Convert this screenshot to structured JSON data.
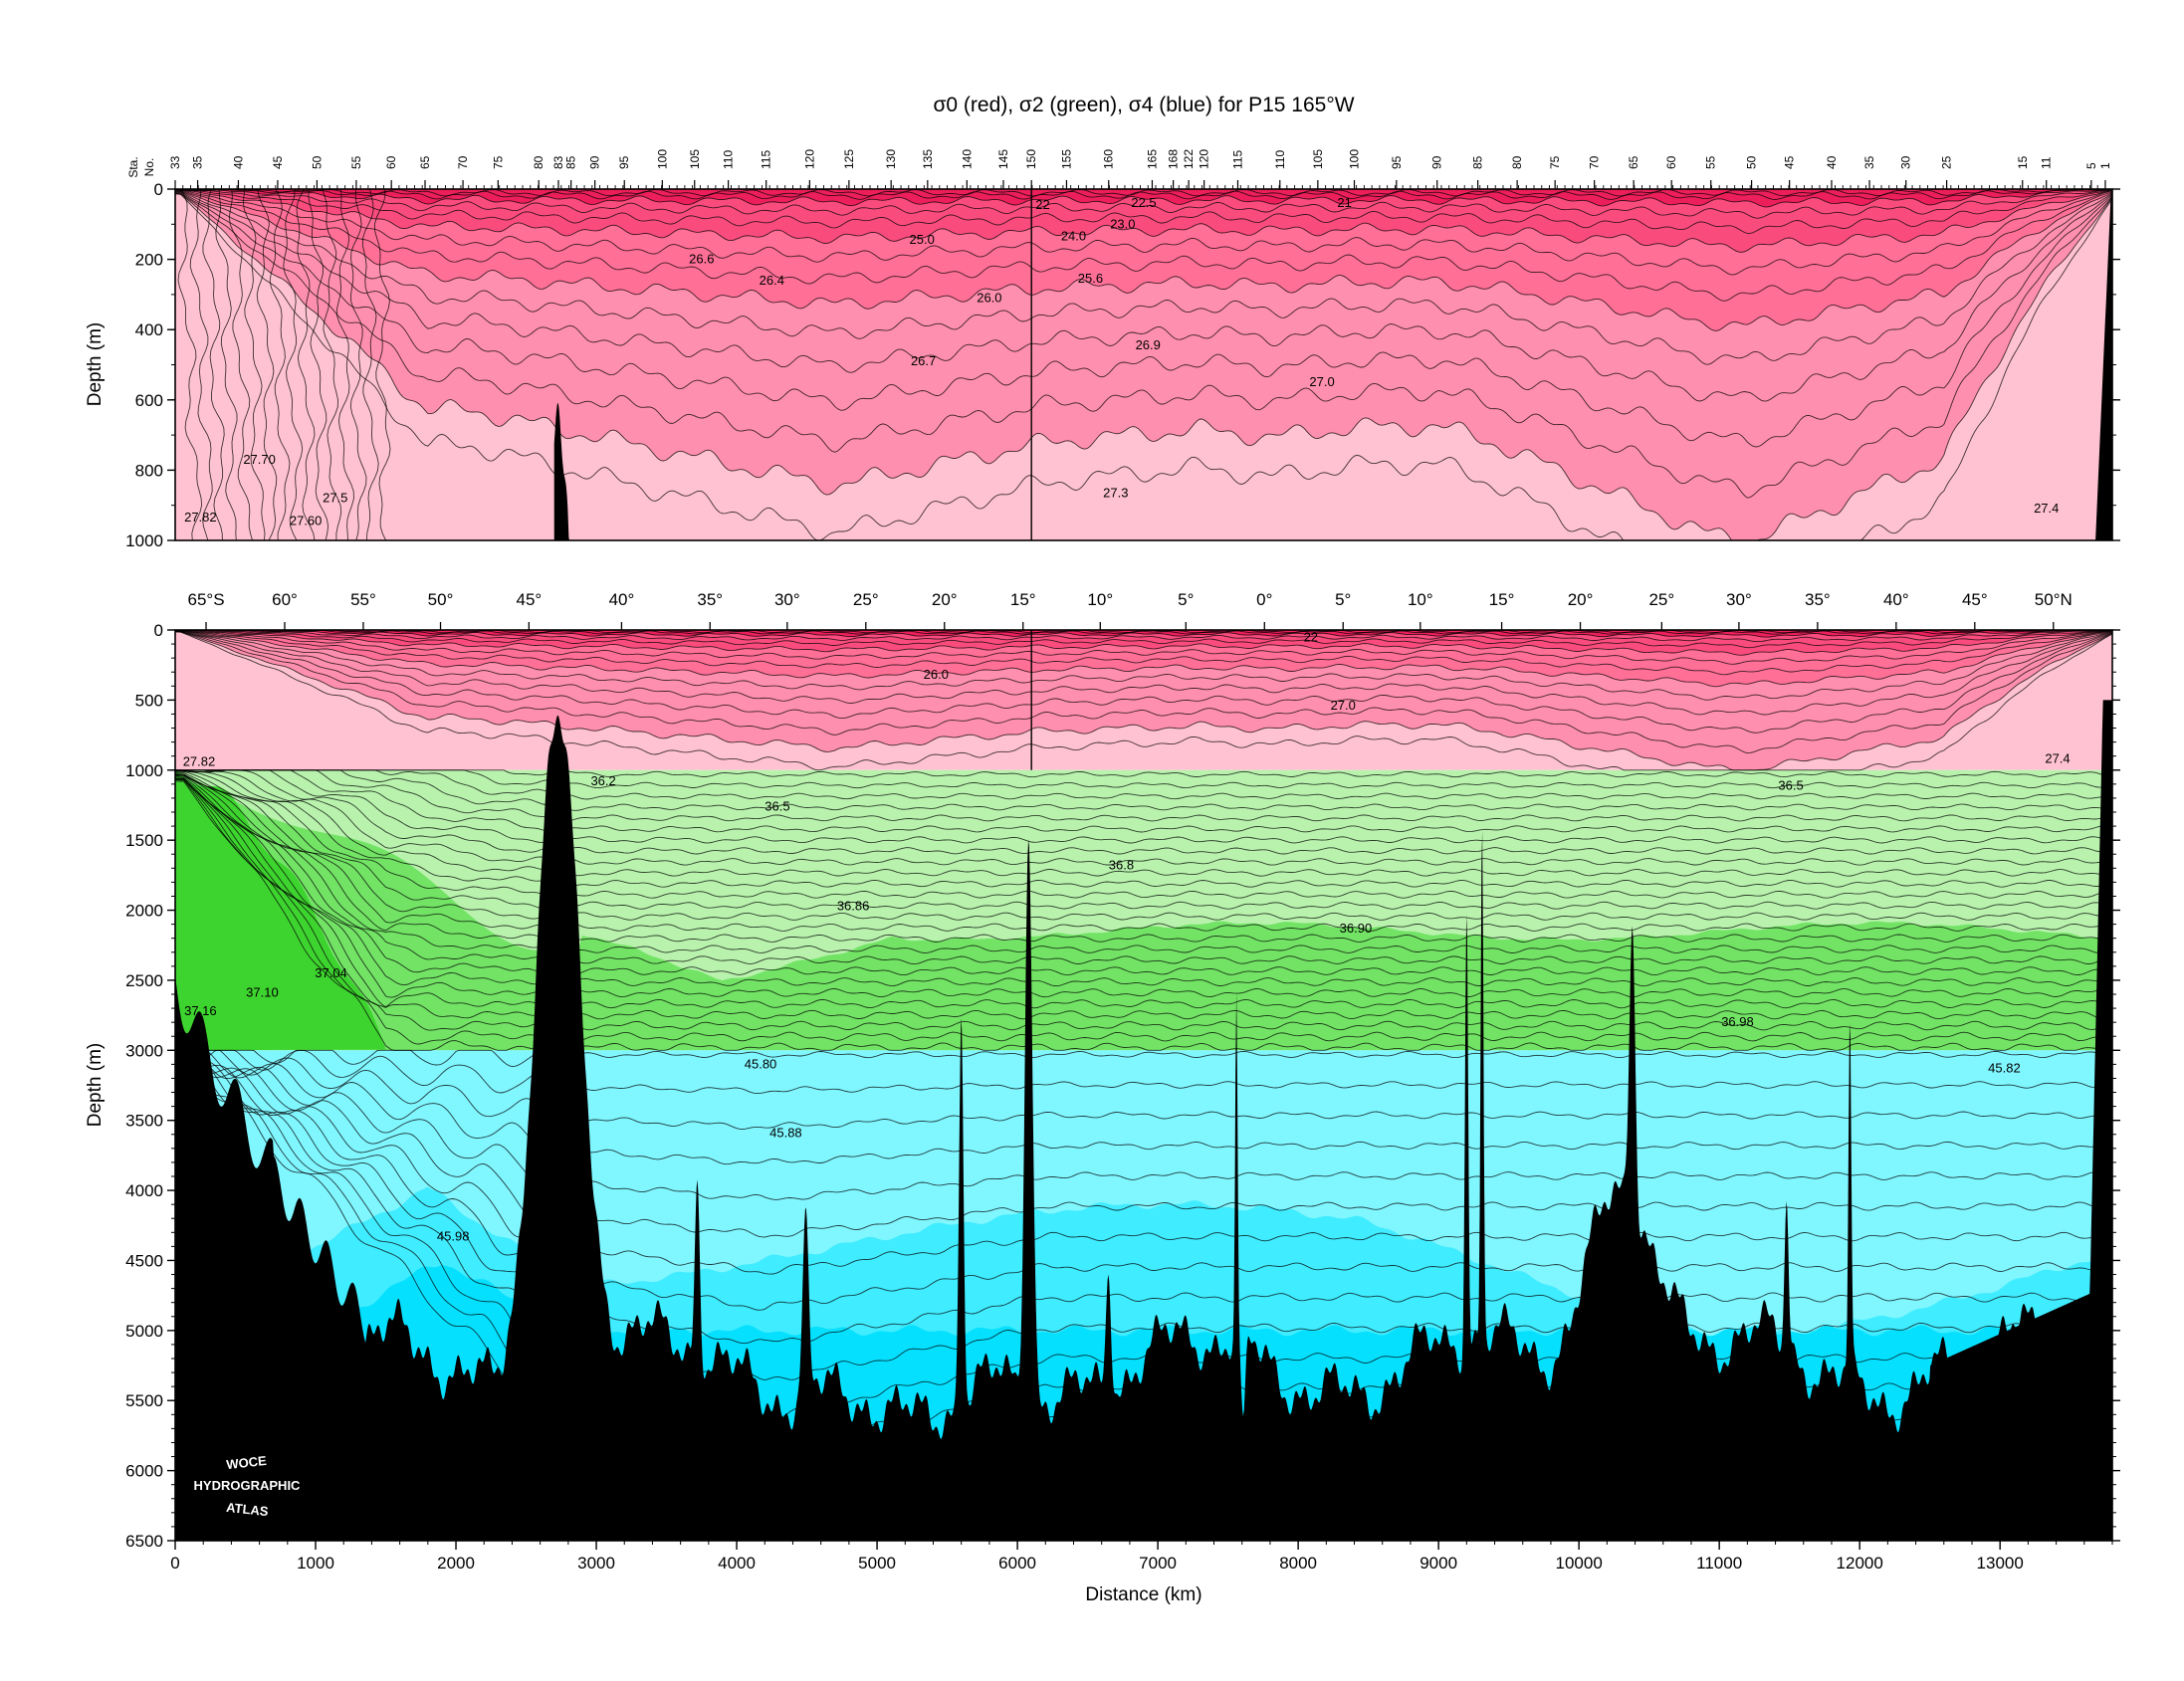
{
  "chart_data": [
    {
      "type": "contour-section",
      "panel": "upper",
      "title": "σ0 (red), σ2 (green), σ4 (blue) for P15 165°W",
      "ylabel": "Depth (m)",
      "ylim": [
        1000,
        0
      ],
      "xlim": [
        0,
        13800
      ],
      "yticks": [
        "0",
        "200",
        "400",
        "600",
        "800",
        "1000"
      ],
      "station_axis_label": [
        "Sta.",
        "No."
      ],
      "station_labels": [
        {
          "label": "33",
          "km": 0
        },
        {
          "label": "35",
          "km": 160
        },
        {
          "label": "40",
          "km": 450
        },
        {
          "label": "45",
          "km": 730
        },
        {
          "label": "50",
          "km": 1010
        },
        {
          "label": "55",
          "km": 1290
        },
        {
          "label": "60",
          "km": 1540
        },
        {
          "label": "65",
          "km": 1780
        },
        {
          "label": "70",
          "km": 2050
        },
        {
          "label": "75",
          "km": 2300
        },
        {
          "label": "80",
          "km": 2590
        },
        {
          "label": "83",
          "km": 2730
        },
        {
          "label": "85",
          "km": 2820
        },
        {
          "label": "90",
          "km": 2990
        },
        {
          "label": "95",
          "km": 3200
        },
        {
          "label": "100",
          "km": 3470
        },
        {
          "label": "105",
          "km": 3700
        },
        {
          "label": "110",
          "km": 3940
        },
        {
          "label": "115",
          "km": 4210
        },
        {
          "label": "120",
          "km": 4520
        },
        {
          "label": "125",
          "km": 4800
        },
        {
          "label": "130",
          "km": 5100
        },
        {
          "label": "135",
          "km": 5360
        },
        {
          "label": "140",
          "km": 5640
        },
        {
          "label": "145",
          "km": 5900
        },
        {
          "label": "150",
          "km": 6100
        },
        {
          "label": "155",
          "km": 6350
        },
        {
          "label": "160",
          "km": 6650
        },
        {
          "label": "165",
          "km": 6960
        },
        {
          "label": "168",
          "km": 7110
        },
        {
          "label": "122",
          "km": 7220
        },
        {
          "label": "120",
          "km": 7330
        },
        {
          "label": "115",
          "km": 7570
        },
        {
          "label": "110",
          "km": 7870
        },
        {
          "label": "105",
          "km": 8140
        },
        {
          "label": "100",
          "km": 8400
        },
        {
          "label": "95",
          "km": 8700
        },
        {
          "label": "90",
          "km": 8990
        },
        {
          "label": "85",
          "km": 9280
        },
        {
          "label": "80",
          "km": 9560
        },
        {
          "label": "75",
          "km": 9830
        },
        {
          "label": "70",
          "km": 10110
        },
        {
          "label": "65",
          "km": 10390
        },
        {
          "label": "60",
          "km": 10660
        },
        {
          "label": "55",
          "km": 10940
        },
        {
          "label": "50",
          "km": 11230
        },
        {
          "label": "45",
          "km": 11500
        },
        {
          "label": "40",
          "km": 11800
        },
        {
          "label": "35",
          "km": 12070
        },
        {
          "label": "30",
          "km": 12330
        },
        {
          "label": "25",
          "km": 12620
        },
        {
          "label": "15",
          "km": 13160
        },
        {
          "label": "11",
          "km": 13330
        },
        {
          "label": "5",
          "km": 13650
        },
        {
          "label": "1",
          "km": 13750
        }
      ],
      "contour_labels": [
        {
          "text": "22",
          "km": 6180,
          "depth": 45
        },
        {
          "text": "22.5",
          "km": 6900,
          "depth": 40
        },
        {
          "text": "21",
          "km": 8330,
          "depth": 40
        },
        {
          "text": "23.0",
          "km": 6750,
          "depth": 100
        },
        {
          "text": "24.0",
          "km": 6400,
          "depth": 135
        },
        {
          "text": "25.0",
          "km": 5320,
          "depth": 145
        },
        {
          "text": "25.6",
          "km": 6520,
          "depth": 255
        },
        {
          "text": "26.6",
          "km": 3750,
          "depth": 200
        },
        {
          "text": "26.4",
          "km": 4250,
          "depth": 260
        },
        {
          "text": "26.0",
          "km": 5800,
          "depth": 310
        },
        {
          "text": "26.7",
          "km": 5330,
          "depth": 490
        },
        {
          "text": "26.9",
          "km": 6930,
          "depth": 445
        },
        {
          "text": "27.0",
          "km": 8170,
          "depth": 550
        },
        {
          "text": "27.70",
          "km": 600,
          "depth": 770
        },
        {
          "text": "27.5",
          "km": 1140,
          "depth": 880
        },
        {
          "text": "27.60",
          "km": 930,
          "depth": 945
        },
        {
          "text": "27.82",
          "km": 180,
          "depth": 935
        },
        {
          "text": "27.3",
          "km": 6700,
          "depth": 865
        },
        {
          "text": "27.4",
          "km": 13330,
          "depth": 910
        }
      ]
    },
    {
      "type": "contour-section",
      "panel": "lower",
      "ylabel": "Depth (m)",
      "xlabel": "Distance (km)",
      "ylim": [
        6500,
        0
      ],
      "xlim": [
        0,
        13800
      ],
      "xticks": [
        "0",
        "1000",
        "2000",
        "3000",
        "4000",
        "5000",
        "6000",
        "7000",
        "8000",
        "9000",
        "10000",
        "11000",
        "12000",
        "13000"
      ],
      "yticks": [
        "0",
        "500",
        "1000",
        "1500",
        "2000",
        "2500",
        "3000",
        "3500",
        "4000",
        "4500",
        "5000",
        "5500",
        "6000",
        "6500"
      ],
      "latitude_labels": [
        {
          "label": "65°S",
          "km": 220
        },
        {
          "label": "60°",
          "km": 780
        },
        {
          "label": "55°",
          "km": 1340
        },
        {
          "label": "50°",
          "km": 1890
        },
        {
          "label": "45°",
          "km": 2520
        },
        {
          "label": "40°",
          "km": 3180
        },
        {
          "label": "35°",
          "km": 3810
        },
        {
          "label": "30°",
          "km": 4360
        },
        {
          "label": "25°",
          "km": 4920
        },
        {
          "label": "20°",
          "km": 5480
        },
        {
          "label": "15°",
          "km": 6040
        },
        {
          "label": "10°",
          "km": 6590
        },
        {
          "label": "5°",
          "km": 7200
        },
        {
          "label": "0°",
          "km": 7760
        },
        {
          "label": "5°",
          "km": 8320
        },
        {
          "label": "10°",
          "km": 8870
        },
        {
          "label": "15°",
          "km": 9450
        },
        {
          "label": "20°",
          "km": 10010
        },
        {
          "label": "25°",
          "km": 10590
        },
        {
          "label": "30°",
          "km": 11140
        },
        {
          "label": "35°",
          "km": 11700
        },
        {
          "label": "40°",
          "km": 12260
        },
        {
          "label": "45°",
          "km": 12820
        },
        {
          "label": "50°N",
          "km": 13380
        }
      ],
      "contour_labels": [
        {
          "text": "22",
          "km": 8090,
          "depth": 55
        },
        {
          "text": "26.0",
          "km": 5420,
          "depth": 320
        },
        {
          "text": "27.0",
          "km": 8320,
          "depth": 540
        },
        {
          "text": "27.82",
          "km": 170,
          "depth": 940
        },
        {
          "text": "27.4",
          "km": 13410,
          "depth": 920
        },
        {
          "text": "36.2",
          "km": 3050,
          "depth": 1080
        },
        {
          "text": "36.5",
          "km": 4290,
          "depth": 1260
        },
        {
          "text": "36.5",
          "km": 11510,
          "depth": 1110
        },
        {
          "text": "36.8",
          "km": 6740,
          "depth": 1680
        },
        {
          "text": "36.86",
          "km": 4830,
          "depth": 1970
        },
        {
          "text": "36.90",
          "km": 8410,
          "depth": 2130
        },
        {
          "text": "37.04",
          "km": 1110,
          "depth": 2450
        },
        {
          "text": "37.10",
          "km": 620,
          "depth": 2590
        },
        {
          "text": "37.16",
          "km": 180,
          "depth": 2720
        },
        {
          "text": "36.98",
          "km": 11130,
          "depth": 2800
        },
        {
          "text": "45.80",
          "km": 4170,
          "depth": 3100
        },
        {
          "text": "45.82",
          "km": 13030,
          "depth": 3130
        },
        {
          "text": "45.88",
          "km": 4350,
          "depth": 3590
        },
        {
          "text": "45.98",
          "km": 1980,
          "depth": 4330
        }
      ]
    }
  ],
  "colors": {
    "sigma0_shades": [
      "#ffc2d2",
      "#ff8fae",
      "#ff6f96",
      "#f94c7d",
      "#ed1f5a"
    ],
    "sigma2_shades": [
      "#b8f2ad",
      "#72e365",
      "#3ed42f"
    ],
    "sigma4_shades": [
      "#80f6ff",
      "#40ecff",
      "#05e0ff"
    ],
    "bottom": "#000000"
  },
  "logo": {
    "lines": [
      "WOCE",
      "HYDROGRAPHIC",
      "ATLAS"
    ]
  }
}
